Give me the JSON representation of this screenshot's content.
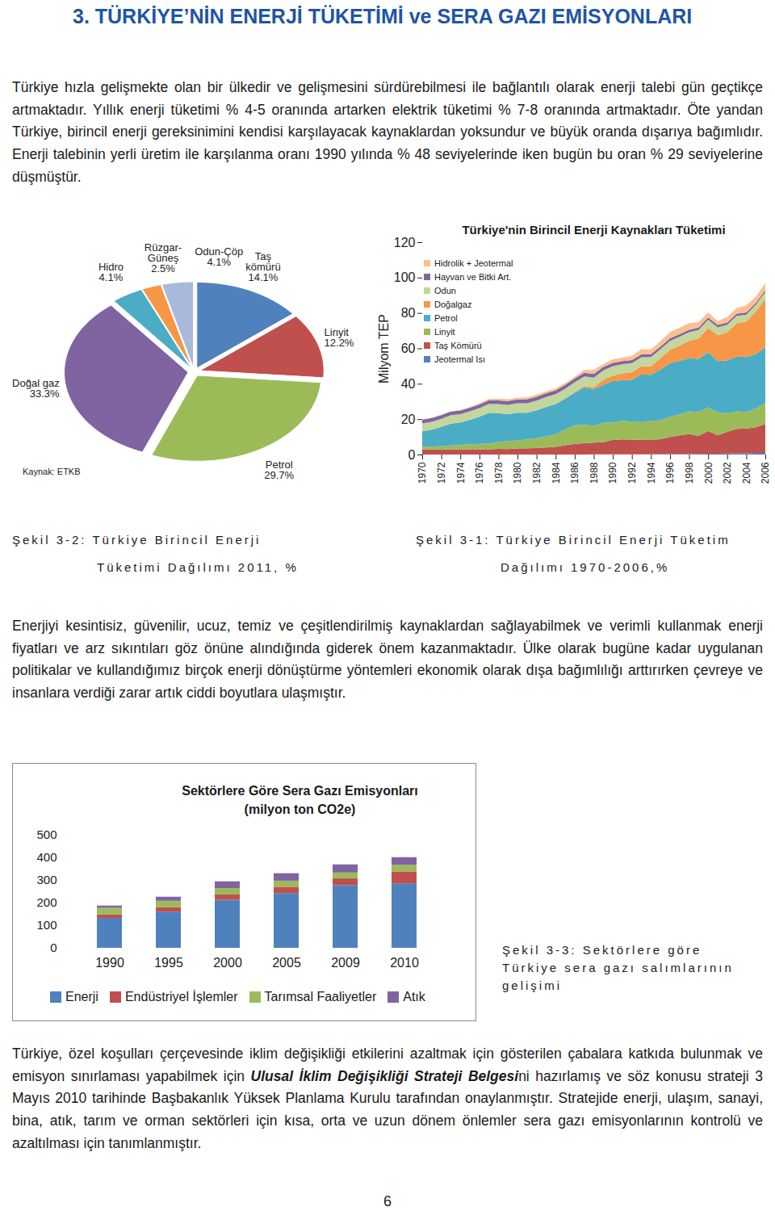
{
  "document": {
    "heading": "3. TÜRKİYE’NİN ENERJİ TÜKETİMİ ve SERA GAZI EMİSYONLARI",
    "paragraphs": [
      [
        {
          "text": "Türkiye hızla gelişmekte olan bir ülkedir ve gelişmesini sürdürebilmesi ile bağlantılı olarak enerji talebi gün geçtikçe artmaktadır. Yıllık enerji tüketimi % 4-5 oranında artarken elektrik tüketimi % 7-8 oranında artmaktadır. Öte yandan Türkiye, birincil enerji gereksinimini kendisi karşılayacak kaynaklardan yoksundur ve büyük oranda dışarıya bağımlıdır. Enerji talebinin yerli üretim ile karşılanma oranı 1990 yılında % 48 seviyelerinde iken bugün bu oran % 29 seviyelerine düşmüştür."
        }
      ],
      [
        {
          "text": "Enerjiyi kesintisiz, güvenilir, ucuz, temiz ve çeşitlendirilmiş kaynaklardan sağlayabilmek ve verimli kullanmak enerji fiyatları ve arz sıkıntıları göz önüne alındığında giderek önem kazanmaktadır. Ülke olarak bugüne kadar uygulanan politikalar ve kullandığımız birçok enerji dönüştürme yöntemleri ekonomik olarak dışa bağımlılığı arttırırken çevreye ve insanlara verdiği zarar artık ciddi boyutlara ulaşmıştır."
        }
      ],
      [
        {
          "text": "Türkiye, özel koşulları çerçevesinde iklim değişikliği etkilerini azaltmak için gösterilen çabalara katkıda bulunmak ve emisyon sınırlaması yapabilmek için "
        },
        {
          "text": "Ulusal İklim Değişikliği Strateji Belgesi",
          "emphasis": true
        },
        {
          "text": "ni hazırlamış ve söz konusu strateji 3 Mayıs 2010 tarihinde Başbakanlık Yüksek Planlama Kurulu tarafından onaylanmıştır. Stratejide enerji, ulaşım, sanayi, bina, atık, tarım ve orman sektörleri için kısa, orta ve uzun dönem önlemler sera gazı emisyonlarının kontrolü ve azaltılması için tanımlanmıştır."
        }
      ]
    ],
    "captions": [
      [
        "Şekil 3-2: Türkiye Birincil Enerji",
        "Tüketimi Dağılımı 2011, %"
      ],
      [
        "Şekil 3-1: Türkiye Birincil Enerji Tüketim",
        "Dağılımı 1970-2006,%"
      ],
      [
        "Şekil 3-3: Sektörlere göre",
        "Türkiye sera gazı salımlarının",
        "gelişimi"
      ]
    ],
    "page_number": "6"
  },
  "chart_data": [
    {
      "type": "pie",
      "categories": [
        "Taş\nkömürü",
        "Linyit",
        "Petrol",
        "Doğal gaz",
        "Hidro",
        "Rüzgar-\nGüneş",
        "Odun-Çöp"
      ],
      "values": [
        14.1,
        12.2,
        29.7,
        33.3,
        4.1,
        2.5,
        4.1
      ],
      "value_labels": [
        "14.1%",
        "12.2%",
        "29.7%",
        "33.3%",
        "4.1%",
        "2.5%",
        "4.1%"
      ],
      "colors": [
        "#4f81bd",
        "#c0504d",
        "#9bbb59",
        "#8064a2",
        "#4bacc6",
        "#f79646",
        "#a9b9dc"
      ],
      "data_labels": true,
      "annotations": [
        "Kaynak: ETKB"
      ]
    },
    {
      "type": "area",
      "stacked": true,
      "title": "Türkiye'nin Birincil Enerji Kaynakları Tüketimi",
      "ylabel": "Milyom TEP",
      "x": [
        1970,
        1971,
        1972,
        1973,
        1974,
        1975,
        1976,
        1977,
        1978,
        1979,
        1980,
        1981,
        1982,
        1983,
        1984,
        1985,
        1986,
        1987,
        1988,
        1989,
        1990,
        1991,
        1992,
        1993,
        1994,
        1995,
        1996,
        1997,
        1998,
        1999,
        2000,
        2001,
        2002,
        2003,
        2004,
        2005,
        2006
      ],
      "xlim": [
        1970,
        2006
      ],
      "xticks": [
        1970,
        1972,
        1974,
        1976,
        1978,
        1980,
        1982,
        1984,
        1986,
        1988,
        1990,
        1992,
        1994,
        1996,
        1998,
        2000,
        2002,
        2004,
        2006
      ],
      "ylim": [
        0,
        120
      ],
      "yticks": [
        0,
        20,
        40,
        60,
        80,
        100,
        120
      ],
      "legend": "top-left",
      "series": [
        {
          "name": "Hidrolik + Jeotermal",
          "color": "#fac090",
          "values": [
            0.26,
            0.27,
            0.26,
            0.23,
            0.33,
            0.43,
            0.71,
            0.71,
            0.93,
            1.0,
            1.0,
            1.1,
            1.2,
            0.99,
            1.2,
            1.1,
            1.0,
            1.6,
            2.5,
            1.6,
            2.0,
            2.0,
            2.3,
            2.9,
            2.7,
            3.1,
            3.5,
            3.6,
            3.8,
            3.1,
            2.8,
            2.2,
            3.1,
            3.2,
            4.0,
            3.5,
            4.0
          ]
        },
        {
          "name": "Hayvan ve Bitki Art.",
          "color": "#8064a2",
          "values": [
            2.1,
            2.1,
            2.1,
            2.1,
            2.1,
            2.1,
            2.1,
            2.1,
            2.1,
            2.2,
            2.2,
            2.2,
            2.2,
            2.2,
            2.2,
            2.1,
            2.1,
            2.0,
            2.0,
            1.9,
            1.8,
            1.7,
            1.7,
            1.6,
            1.6,
            1.5,
            1.5,
            1.4,
            1.4,
            1.3,
            1.3,
            1.3,
            1.2,
            1.2,
            1.2,
            1.1,
            1.1
          ]
        },
        {
          "name": "Odun",
          "color": "#c3d69b",
          "values": [
            4.5,
            4.5,
            4.6,
            4.7,
            4.7,
            4.8,
            4.9,
            5.0,
            5.1,
            5.2,
            5.3,
            5.4,
            5.4,
            5.5,
            5.5,
            5.5,
            5.5,
            5.5,
            5.4,
            5.4,
            5.4,
            5.3,
            5.3,
            5.2,
            5.2,
            5.1,
            5.1,
            5.0,
            4.9,
            4.8,
            4.7,
            4.5,
            4.4,
            4.2,
            4.0,
            3.8,
            3.7
          ]
        },
        {
          "name": "Doğalgaz",
          "color": "#f79646",
          "values": [
            0,
            0,
            0,
            0,
            0,
            0.01,
            0.01,
            0.02,
            0.02,
            0.02,
            0.02,
            0.03,
            0.03,
            0.05,
            0.05,
            0.06,
            0.4,
            0.7,
            1.1,
            2.8,
            3.1,
            3.8,
            4.2,
            4.5,
            4.8,
            6.3,
            7.4,
            8.8,
            9.7,
            11.6,
            13.7,
            14.6,
            15.7,
            18.9,
            20.0,
            24.0,
            27.5
          ]
        },
        {
          "name": "Petrol",
          "color": "#4bacc6",
          "values": [
            8.6,
            9.5,
            10.8,
            12.4,
            12.6,
            13.8,
            15.3,
            17.3,
            16.3,
            15.2,
            15.6,
            15.1,
            15.8,
            16.7,
            17.1,
            17.4,
            18.4,
            20.9,
            20.8,
            21.4,
            23.4,
            22.9,
            23.6,
            27.0,
            25.9,
            28.8,
            30.4,
            30.1,
            30.1,
            30.0,
            31.1,
            29.0,
            29.9,
            30.9,
            31.1,
            30.8,
            31.4
          ]
        },
        {
          "name": "Linyit",
          "color": "#9bbb59",
          "values": [
            1.6,
            1.7,
            1.9,
            2.2,
            2.5,
            2.8,
            3.0,
            3.3,
            3.9,
            4.5,
            4.6,
            5.0,
            5.5,
            6.2,
            7.1,
            9.0,
            10.5,
            10.7,
            9.4,
            11.0,
            9.8,
            10.6,
            10.2,
            10.0,
            11.0,
            10.6,
            11.4,
            11.9,
            12.8,
            13.5,
            13.3,
            13.0,
            10.5,
            9.9,
            9.3,
            10.6,
            11.9
          ]
        },
        {
          "name": "Taş Kömürü",
          "color": "#c0504d",
          "values": [
            2.9,
            2.8,
            2.9,
            2.9,
            3.0,
            3.0,
            3.0,
            3.0,
            3.2,
            3.1,
            3.4,
            3.5,
            3.7,
            4.0,
            4.3,
            5.2,
            6.0,
            6.3,
            6.7,
            6.9,
            8.2,
            8.4,
            8.3,
            8.2,
            8.0,
            8.5,
            9.7,
            10.6,
            11.4,
            10.2,
            13.0,
            10.3,
            12.3,
            13.9,
            14.0,
            14.5,
            16.4
          ]
        },
        {
          "name": "Jeotermal Isı",
          "color": "#4f81bd",
          "values": [
            0,
            0,
            0,
            0,
            0,
            0,
            0,
            0,
            0,
            0,
            0,
            0,
            0,
            0.01,
            0.02,
            0.04,
            0.05,
            0.05,
            0.06,
            0.06,
            0.1,
            0.1,
            0.1,
            0.1,
            0.2,
            0.2,
            0.2,
            0.2,
            0.2,
            0.3,
            0.4,
            0.5,
            0.6,
            0.6,
            0.7,
            0.9,
            0.9
          ]
        }
      ]
    },
    {
      "type": "bar",
      "stacked": true,
      "title": "Sektörlere Göre Sera Gazı Emisyonları",
      "subtitle": "(milyon ton CO2e)",
      "categories": [
        "1990",
        "1995",
        "2000",
        "2005",
        "2009",
        "2010"
      ],
      "ylim": [
        0,
        500
      ],
      "yticks": [
        0,
        100,
        200,
        300,
        400,
        500
      ],
      "legend": "bottom",
      "series": [
        {
          "name": "Enerji",
          "color": "#4f81bd",
          "values": [
            132,
            160,
            212,
            242,
            277,
            285
          ]
        },
        {
          "name": "Endüstriyel İşlemler",
          "color": "#c0504d",
          "values": [
            15,
            20,
            24,
            28,
            30,
            53
          ]
        },
        {
          "name": "Tarımsal Faaliyetler",
          "color": "#9bbb59",
          "values": [
            30,
            28,
            28,
            27,
            26,
            29
          ]
        },
        {
          "name": "Atık",
          "color": "#8064a2",
          "values": [
            10,
            18,
            30,
            33,
            36,
            34
          ]
        }
      ]
    }
  ]
}
